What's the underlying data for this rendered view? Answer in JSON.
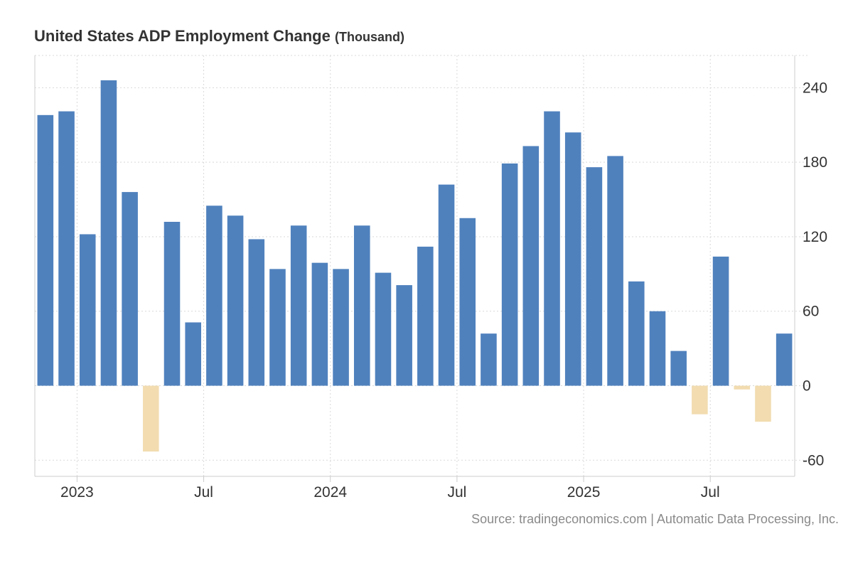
{
  "title": "United States ADP Employment Change",
  "unit": "(Thousand)",
  "source": "Source: tradingeconomics.com | Automatic Data Processing, Inc.",
  "colors": {
    "positive": "#4f81bd",
    "negative": "#f2dcb0",
    "grid": "#d9d9d9",
    "axis": "#cccccc",
    "text": "#333333"
  },
  "chart_data": {
    "type": "bar",
    "title": "United States ADP Employment Change",
    "ylabel": "Thousand",
    "ylim": [
      -73,
      266
    ],
    "yticks": [
      240,
      180,
      120,
      60,
      0,
      -60
    ],
    "categories": [
      "2022-11",
      "2022-12",
      "2023-01",
      "2023-02",
      "2023-03",
      "2023-04",
      "2023-05",
      "2023-06",
      "2023-07",
      "2023-08",
      "2023-09",
      "2023-10",
      "2023-11",
      "2023-12",
      "2024-01",
      "2024-02",
      "2024-03",
      "2024-04",
      "2024-05",
      "2024-06",
      "2024-07",
      "2024-08",
      "2024-09",
      "2024-10",
      "2024-11",
      "2024-12",
      "2025-01",
      "2025-02",
      "2025-03",
      "2025-04",
      "2025-05",
      "2025-06",
      "2025-07",
      "2025-08",
      "2025-09",
      "2025-10"
    ],
    "values": [
      218,
      221,
      122,
      246,
      156,
      -53,
      132,
      51,
      145,
      137,
      118,
      94,
      129,
      99,
      94,
      129,
      91,
      81,
      112,
      162,
      135,
      42,
      179,
      193,
      221,
      204,
      176,
      185,
      84,
      60,
      28,
      -23,
      104,
      -3,
      -29,
      42
    ],
    "xticks": [
      {
        "label": "2023",
        "month": "2023-01"
      },
      {
        "label": "Jul",
        "month": "2023-07"
      },
      {
        "label": "2024",
        "month": "2024-01"
      },
      {
        "label": "Jul",
        "month": "2024-07"
      },
      {
        "label": "2025",
        "month": "2025-01"
      },
      {
        "label": "Jul",
        "month": "2025-07"
      }
    ],
    "grid": true,
    "legend": "none"
  }
}
